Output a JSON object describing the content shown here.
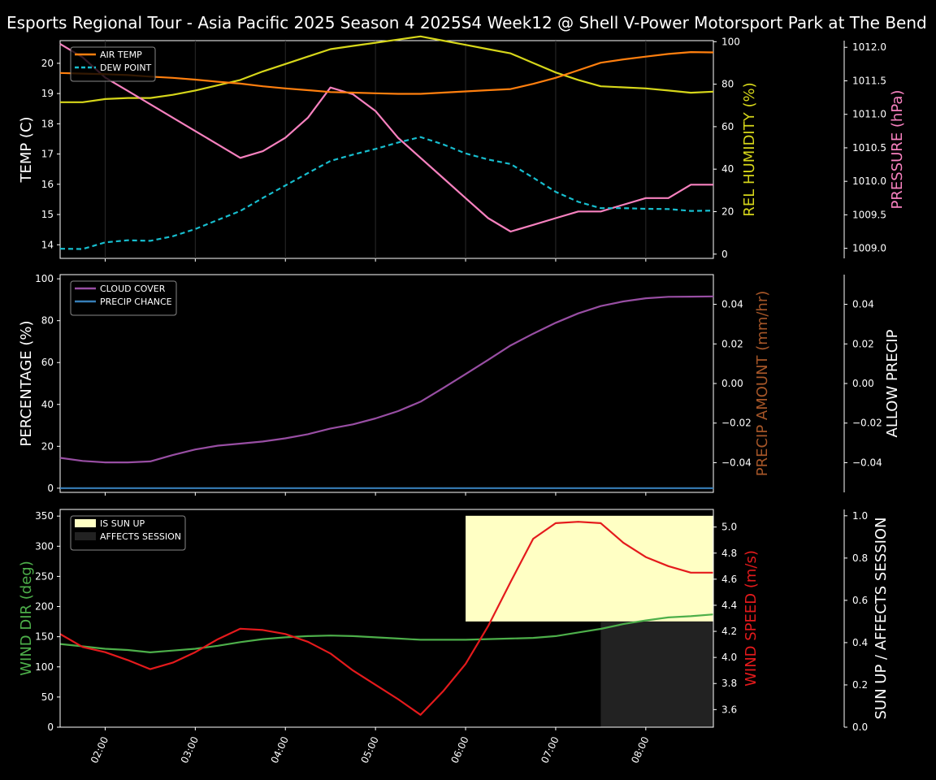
{
  "title": "Esports Regional Tour - Asia Pacific 2025 Season 4 2025S4 Week12 @ Shell V-Power Motorsport Park at The Bend",
  "colors": {
    "background": "#000000",
    "air_temp": "#ff7f0e",
    "dew_point": "#17becf",
    "humidity": "#d6d61a",
    "pressure": "#f781bf",
    "cloud": "#984ea3",
    "precip_chance": "#377eb8",
    "precip_amount": "#a65628",
    "wind_dir": "#4daf4a",
    "wind_speed": "#e41a1c",
    "sun_up": "#ffffc4",
    "affects_session": "#222222"
  },
  "chart_data": [
    {
      "type": "line",
      "panel": "temperature",
      "x": [
        "01:30",
        "01:45",
        "02:00",
        "02:15",
        "02:30",
        "02:45",
        "03:00",
        "03:15",
        "03:30",
        "03:45",
        "04:00",
        "04:15",
        "04:30",
        "04:45",
        "05:00",
        "05:15",
        "05:30",
        "05:45",
        "06:00",
        "06:15",
        "06:30",
        "06:45",
        "07:00",
        "07:15",
        "07:30",
        "07:45",
        "08:00",
        "08:15",
        "08:30",
        "08:45"
      ],
      "xticks": [
        "02:00",
        "03:00",
        "04:00",
        "05:00",
        "06:00",
        "07:00",
        "08:00"
      ],
      "grid": "vertical",
      "legend_position": "top-left",
      "legend": [
        "AIR TEMP",
        "DEW POINT"
      ],
      "axes": {
        "left": {
          "label": "TEMP (C)",
          "range": [
            13.55,
            20.75
          ],
          "ticks": [
            "14",
            "15",
            "16",
            "17",
            "18",
            "19",
            "20"
          ]
        },
        "right1": {
          "label": "REL HUMIDITY (%)",
          "range": [
            -2,
            100.5
          ],
          "ticks": [
            "0",
            "20",
            "40",
            "60",
            "80",
            "100"
          ]
        },
        "right2": {
          "label": "PRESSURE (hPa)",
          "range": [
            1008.85,
            1012.1
          ],
          "ticks": [
            "1009.0",
            "1009.5",
            "1010.0",
            "1010.5",
            "1011.0",
            "1011.5",
            "1012.0"
          ]
        }
      },
      "series": [
        {
          "name": "AIR TEMP",
          "axis": "left",
          "style": "solid",
          "values": [
            19.68,
            19.66,
            19.64,
            19.61,
            19.56,
            19.52,
            19.46,
            19.39,
            19.33,
            19.24,
            19.17,
            19.11,
            19.05,
            19.03,
            19.01,
            18.99,
            18.99,
            19.03,
            19.07,
            19.11,
            19.15,
            19.32,
            19.52,
            19.77,
            20.02,
            20.13,
            20.22,
            20.31,
            20.37,
            20.36
          ]
        },
        {
          "name": "DEW POINT",
          "axis": "left",
          "style": "dashed",
          "values": [
            13.87,
            13.86,
            14.08,
            14.15,
            14.13,
            14.28,
            14.52,
            14.82,
            15.12,
            15.55,
            15.96,
            16.37,
            16.77,
            16.98,
            17.17,
            17.38,
            17.56,
            17.32,
            17.02,
            16.82,
            16.67,
            16.22,
            15.75,
            15.42,
            15.21,
            15.21,
            15.19,
            15.18,
            15.12,
            15.13
          ]
        },
        {
          "name": "",
          "axis": "right1",
          "style": "solid",
          "values": [
            71.5,
            71.5,
            73,
            73.5,
            73.5,
            75,
            77,
            79.5,
            82,
            86,
            89.5,
            93,
            96.5,
            98,
            99.5,
            101,
            102.5,
            100.5,
            98.5,
            96.5,
            94.5,
            90,
            85.5,
            82,
            79,
            78.5,
            78,
            77,
            76,
            76.5
          ]
        },
        {
          "name": "",
          "axis": "right2",
          "style": "solid",
          "values": [
            1012.05,
            1011.85,
            1011.55,
            1011.35,
            1011.15,
            1010.95,
            1010.75,
            1010.55,
            1010.35,
            1010.45,
            1010.65,
            1010.95,
            1011.4,
            1011.3,
            1011.05,
            1010.65,
            1010.35,
            1010.05,
            1009.75,
            1009.45,
            1009.25,
            1009.35,
            1009.45,
            1009.55,
            1009.55,
            1009.65,
            1009.75,
            1009.75,
            1009.95,
            1009.95
          ]
        }
      ]
    },
    {
      "type": "line",
      "panel": "precipitation",
      "x": [
        "01:30",
        "01:45",
        "02:00",
        "02:15",
        "02:30",
        "02:45",
        "03:00",
        "03:15",
        "03:30",
        "03:45",
        "04:00",
        "04:15",
        "04:30",
        "04:45",
        "05:00",
        "05:15",
        "05:30",
        "05:45",
        "06:00",
        "06:15",
        "06:30",
        "06:45",
        "07:00",
        "07:15",
        "07:30",
        "07:45",
        "08:00",
        "08:15",
        "08:30",
        "08:45"
      ],
      "legend_position": "top-left",
      "legend": [
        "CLOUD COVER",
        "PRECIP CHANCE"
      ],
      "axes": {
        "left": {
          "label": "PERCENTAGE (%)",
          "range": [
            -2,
            102
          ],
          "ticks": [
            "0",
            "20",
            "40",
            "60",
            "80",
            "100"
          ]
        },
        "right1": {
          "label": "PRECIP AMOUNT (mm/hr)",
          "range": [
            -0.055,
            0.055
          ],
          "ticks": [
            "−0.04",
            "−0.02",
            "0.00",
            "0.02",
            "0.04"
          ]
        },
        "right2": {
          "label": "ALLOW PRECIP",
          "range": [
            -0.055,
            0.055
          ],
          "ticks": [
            "−0.04",
            "−0.02",
            "0.00",
            "0.02",
            "0.04"
          ]
        }
      },
      "series": [
        {
          "name": "CLOUD COVER",
          "axis": "left",
          "values": [
            14.5,
            13,
            12.3,
            12.3,
            12.8,
            15.8,
            18.5,
            20.3,
            21.3,
            22.3,
            23.8,
            25.8,
            28.5,
            30.5,
            33.3,
            36.8,
            41.3,
            47.8,
            54.5,
            61.3,
            68.2,
            73.8,
            79,
            83.5,
            87,
            89.2,
            90.7,
            91.4,
            91.5,
            91.6
          ]
        },
        {
          "name": "PRECIP CHANCE",
          "axis": "left",
          "values": [
            0,
            0,
            0,
            0,
            0,
            0,
            0,
            0,
            0,
            0,
            0,
            0,
            0,
            0,
            0,
            0,
            0,
            0,
            0,
            0,
            0,
            0,
            0,
            0,
            0,
            0,
            0,
            0,
            0,
            0
          ]
        }
      ]
    },
    {
      "type": "line",
      "panel": "wind",
      "x": [
        "01:30",
        "01:45",
        "02:00",
        "02:15",
        "02:30",
        "02:45",
        "03:00",
        "03:15",
        "03:30",
        "03:45",
        "04:00",
        "04:15",
        "04:30",
        "04:45",
        "05:00",
        "05:15",
        "05:30",
        "05:45",
        "06:00",
        "06:15",
        "06:30",
        "06:45",
        "07:00",
        "07:15",
        "07:30",
        "07:45",
        "08:00",
        "08:15",
        "08:30",
        "08:45"
      ],
      "legend_position": "top-left",
      "legend": [
        "IS SUN UP",
        "AFFECTS SESSION"
      ],
      "axes": {
        "left": {
          "label": "WIND DIR (deg)",
          "range": [
            0,
            361
          ],
          "ticks": [
            "0",
            "50",
            "100",
            "150",
            "200",
            "250",
            "300",
            "350"
          ]
        },
        "right1": {
          "label": "WIND SPEED (m/s)",
          "range": [
            3.465,
            5.135
          ],
          "ticks": [
            "3.6",
            "3.8",
            "4.0",
            "4.2",
            "4.4",
            "4.6",
            "4.8",
            "5.0"
          ]
        },
        "right2": {
          "label": "SUN UP / AFFECTS SESSION",
          "range": [
            0,
            1.03
          ],
          "ticks": [
            "0.0",
            "0.2",
            "0.4",
            "0.6",
            "0.8",
            "1.0"
          ]
        }
      },
      "bands": [
        {
          "name": "IS SUN UP",
          "from": "06:00",
          "to": "08:45",
          "ymin": 0.5,
          "ymax": 1.0
        },
        {
          "name": "AFFECTS SESSION",
          "from": "07:30",
          "to": "08:45",
          "ymin": 0,
          "ymax": 0.5
        }
      ],
      "series": [
        {
          "name": "",
          "axis": "left",
          "values": [
            138,
            134,
            130,
            128,
            124,
            127,
            130,
            135,
            141,
            146,
            149,
            151,
            152,
            151,
            149,
            147,
            145,
            145,
            145,
            146,
            147,
            148,
            151,
            157,
            163,
            171,
            177,
            182,
            184,
            187
          ]
        },
        {
          "name": "",
          "axis": "right1",
          "values": [
            4.18,
            4.08,
            4.04,
            3.98,
            3.91,
            3.96,
            4.04,
            4.14,
            4.22,
            4.21,
            4.18,
            4.12,
            4.03,
            3.9,
            3.79,
            3.68,
            3.56,
            3.74,
            3.95,
            4.24,
            4.58,
            4.91,
            5.03,
            5.04,
            5.03,
            4.88,
            4.77,
            4.7,
            4.65,
            4.65
          ]
        }
      ]
    }
  ]
}
